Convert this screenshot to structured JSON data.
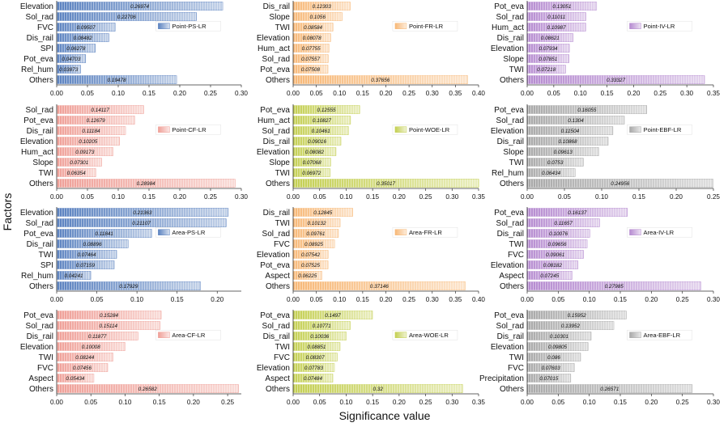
{
  "xlabel": "Significance value",
  "ylabel": "Factors",
  "chart_data": [
    {
      "type": "bar",
      "legend": "Point-PS-LR",
      "color": "#5b82c0",
      "categories": [
        "Elevation",
        "Sol_rad",
        "FVC",
        "Dis_rail",
        "SPI",
        "Pot_eva",
        "Rel_hum",
        "Others"
      ],
      "values": [
        0.26974,
        0.22706,
        0.09507,
        0.08482,
        0.06278,
        0.04703,
        0.03873,
        0.19478
      ],
      "labels": [
        "0.26974",
        "0.22706",
        "0.09507",
        "0.08482",
        "0.06278",
        "0.04703",
        "0.03873",
        "0.19478"
      ],
      "xlim": [
        0,
        0.3
      ],
      "ticks": [
        "0.00",
        "0.05",
        "0.10",
        "0.15",
        "0.20",
        "0.25",
        "0.30"
      ]
    },
    {
      "type": "bar",
      "legend": "Point-FR-LR",
      "color": "#f7b877",
      "categories": [
        "Dis_rail",
        "Slope",
        "TWI",
        "Elevation",
        "Hum_act",
        "Sol_rad",
        "Pot_eva",
        "Others"
      ],
      "values": [
        0.12303,
        0.1056,
        0.08584,
        0.08078,
        0.07755,
        0.07557,
        0.07508,
        0.37656
      ],
      "labels": [
        "0.12303",
        "0.1056",
        "0.08584",
        "0.08078",
        "0.07755",
        "0.07557",
        "0.07508",
        "0.37656"
      ],
      "xlim": [
        0,
        0.4
      ],
      "ticks": [
        "0.00",
        "0.05",
        "0.10",
        "0.15",
        "0.20",
        "0.25",
        "0.30",
        "0.35",
        "0.40"
      ]
    },
    {
      "type": "bar",
      "legend": "Point-IV-LR",
      "color": "#b58ad0",
      "categories": [
        "Pot_eva",
        "Sol_rad",
        "Hum_act",
        "Dis_rail",
        "Elevation",
        "Slope",
        "TWI",
        "Others"
      ],
      "values": [
        0.13051,
        0.11011,
        0.10987,
        0.08621,
        0.07934,
        0.07851,
        0.07218,
        0.33327
      ],
      "labels": [
        "0.13051",
        "0.11011",
        "0.10987",
        "0.08621",
        "0.07934",
        "0.07851",
        "0.07218",
        "0.33327"
      ],
      "xlim": [
        0,
        0.35
      ],
      "ticks": [
        "0.00",
        "0.05",
        "0.10",
        "0.15",
        "0.20",
        "0.25",
        "0.30",
        "0.35"
      ]
    },
    {
      "type": "bar",
      "legend": "Point-CF-LR",
      "color": "#ef9f97",
      "categories": [
        "Sol_rad",
        "Pot_eva",
        "Dis_rail",
        "Elevation",
        "Hum_act",
        "Slope",
        "TWI",
        "Others"
      ],
      "values": [
        0.14117,
        0.12679,
        0.11184,
        0.10205,
        0.09173,
        0.07301,
        0.06354,
        0.28984
      ],
      "labels": [
        "0.14117",
        "0.12679",
        "0.11184",
        "0.10205",
        "0.09173",
        "0.07301",
        "0.06354",
        "0.28984"
      ],
      "xlim": [
        0,
        0.3
      ],
      "ticks": [
        "0.00",
        "0.05",
        "0.10",
        "0.15",
        "0.20",
        "0.25",
        "0.30"
      ]
    },
    {
      "type": "bar",
      "legend": "Point-WOE-LR",
      "color": "#c4cf52",
      "categories": [
        "Pot_eva",
        "Hum_act",
        "Sol_rad",
        "Dis_rail",
        "Elevation",
        "Slope",
        "TWI",
        "Others"
      ],
      "values": [
        0.12555,
        0.10827,
        0.10461,
        0.09016,
        0.08082,
        0.07068,
        0.06972,
        0.35017
      ],
      "labels": [
        "0.12555",
        "0.10827",
        "0.10461",
        "0.09016",
        "0.08082",
        "0.07068",
        "0.06972",
        "0.35017"
      ],
      "xlim": [
        0,
        0.35
      ],
      "ticks": [
        "0.00",
        "0.05",
        "0.10",
        "0.15",
        "0.20",
        "0.25",
        "0.30",
        "0.35"
      ]
    },
    {
      "type": "bar",
      "legend": "Point-EBF-LR",
      "color": "#a8a8a8",
      "categories": [
        "Pot_eva",
        "Sol_rad",
        "Elevation",
        "Dis_rail",
        "Slope",
        "TWI",
        "Rel_hum",
        "Others"
      ],
      "values": [
        0.16055,
        0.1304,
        0.11504,
        0.10868,
        0.09613,
        0.0753,
        0.06434,
        0.24956
      ],
      "labels": [
        "0.16055",
        "0.1304",
        "0.11504",
        "0.10868",
        "0.09613",
        "0.0753",
        "0.06434",
        "0.24956"
      ],
      "xlim": [
        0,
        0.25
      ],
      "ticks": [
        "0.00",
        "0.05",
        "0.10",
        "0.15",
        "0.20",
        "0.25"
      ]
    },
    {
      "type": "bar",
      "legend": "Area-PS-LR",
      "color": "#5b82c0",
      "categories": [
        "Elevation",
        "Sol_rad",
        "Pot_eva",
        "Dis_rail",
        "TWI",
        "SPI",
        "Rel_hum",
        "Others"
      ],
      "values": [
        0.21363,
        0.21107,
        0.11841,
        0.08896,
        0.07464,
        0.07159,
        0.04241,
        0.17929
      ],
      "labels": [
        "0.21363",
        "0.21107",
        "0.11841",
        "0.08896",
        "0.07464",
        "0.07159",
        "0.04241",
        "0.17929"
      ],
      "xlim": [
        0,
        0.23
      ],
      "ticks": [
        "0.00",
        "0.05",
        "0.10",
        "0.15",
        "0.20"
      ]
    },
    {
      "type": "bar",
      "legend": "Area-FR-LR",
      "color": "#f7b877",
      "categories": [
        "Dis_rail",
        "TWI",
        "Sol_rad",
        "FVC",
        "Elevation",
        "Pot_eva",
        "Aspect",
        "Others"
      ],
      "values": [
        0.12845,
        0.10132,
        0.09761,
        0.08925,
        0.07542,
        0.07525,
        0.06225,
        0.37146
      ],
      "labels": [
        "0.12845",
        "0.10132",
        "0.09761",
        "0.08925",
        "0.07542",
        "0.07525",
        "0.06225",
        "0.37146"
      ],
      "xlim": [
        0,
        0.4
      ],
      "ticks": [
        "0.00",
        "0.05",
        "0.10",
        "0.15",
        "0.20",
        "0.25",
        "0.30",
        "0.35",
        "0.40"
      ]
    },
    {
      "type": "bar",
      "legend": "Area-IV-LR",
      "color": "#b58ad0",
      "categories": [
        "Pot_eva",
        "Sol_rad",
        "Dis_rail",
        "TWI",
        "FVC",
        "Elevation",
        "Aspect",
        "Others"
      ],
      "values": [
        0.16137,
        0.11657,
        0.10076,
        0.09656,
        0.09061,
        0.08182,
        0.07245,
        0.27985
      ],
      "labels": [
        "0.16137",
        "0.11657",
        "0.10076",
        "0.09656",
        "0.09061",
        "0.08182",
        "0.07245",
        "0.27985"
      ],
      "xlim": [
        0,
        0.3
      ],
      "ticks": [
        "0.00",
        "0.05",
        "0.10",
        "0.15",
        "0.20",
        "0.25",
        "0.30"
      ]
    },
    {
      "type": "bar",
      "legend": "Area-CF-LR",
      "color": "#ef9f97",
      "categories": [
        "Pot_eva",
        "Sol_rad",
        "Dis_rail",
        "Elevation",
        "TWI",
        "FVC",
        "Aspect",
        "Others"
      ],
      "values": [
        0.15284,
        0.15114,
        0.11877,
        0.10008,
        0.08244,
        0.07456,
        0.05434,
        0.26582
      ],
      "labels": [
        "0.15284",
        "0.15114",
        "0.11877",
        "0.10008",
        "0.08244",
        "0.07456",
        "0.05434",
        "0.26582"
      ],
      "xlim": [
        0,
        0.27
      ],
      "ticks": [
        "0.00",
        "0.05",
        "0.10",
        "0.15",
        "0.20",
        "0.25"
      ]
    },
    {
      "type": "bar",
      "legend": "Area-WOE-LR",
      "color": "#c4cf52",
      "categories": [
        "Pot_eva",
        "Sol_rad",
        "Dis_rail",
        "TWI",
        "FVC",
        "Elevation",
        "Aspect",
        "Others"
      ],
      "values": [
        0.1497,
        0.10771,
        0.10036,
        0.08851,
        0.08307,
        0.07783,
        0.07484,
        0.32
      ],
      "labels": [
        "0.1497",
        "0.10771",
        "0.10036",
        "0.08851",
        "0.08307",
        "0.07783",
        "0.07484",
        "0.32"
      ],
      "xlim": [
        0,
        0.35
      ],
      "ticks": [
        "0.00",
        "0.05",
        "0.10",
        "0.15",
        "0.20",
        "0.25",
        "0.30",
        "0.35"
      ]
    },
    {
      "type": "bar",
      "legend": "Area-EBF-LR",
      "color": "#a8a8a8",
      "categories": [
        "Pot_eva",
        "Sol_rad",
        "Dis_rail",
        "Elevation",
        "TWI",
        "FVC",
        "Precipitation",
        "Others"
      ],
      "values": [
        0.15952,
        0.13952,
        0.10301,
        0.09805,
        0.086,
        0.07603,
        0.07015,
        0.26571
      ],
      "labels": [
        "0.15952",
        "0.13952",
        "0.10301",
        "0.09805",
        "0.086",
        "0.07603",
        "0.07015",
        "0.26571"
      ],
      "xlim": [
        0,
        0.3
      ],
      "ticks": [
        "0.00",
        "0.05",
        "0.10",
        "0.15",
        "0.20",
        "0.25",
        "0.30"
      ]
    }
  ]
}
